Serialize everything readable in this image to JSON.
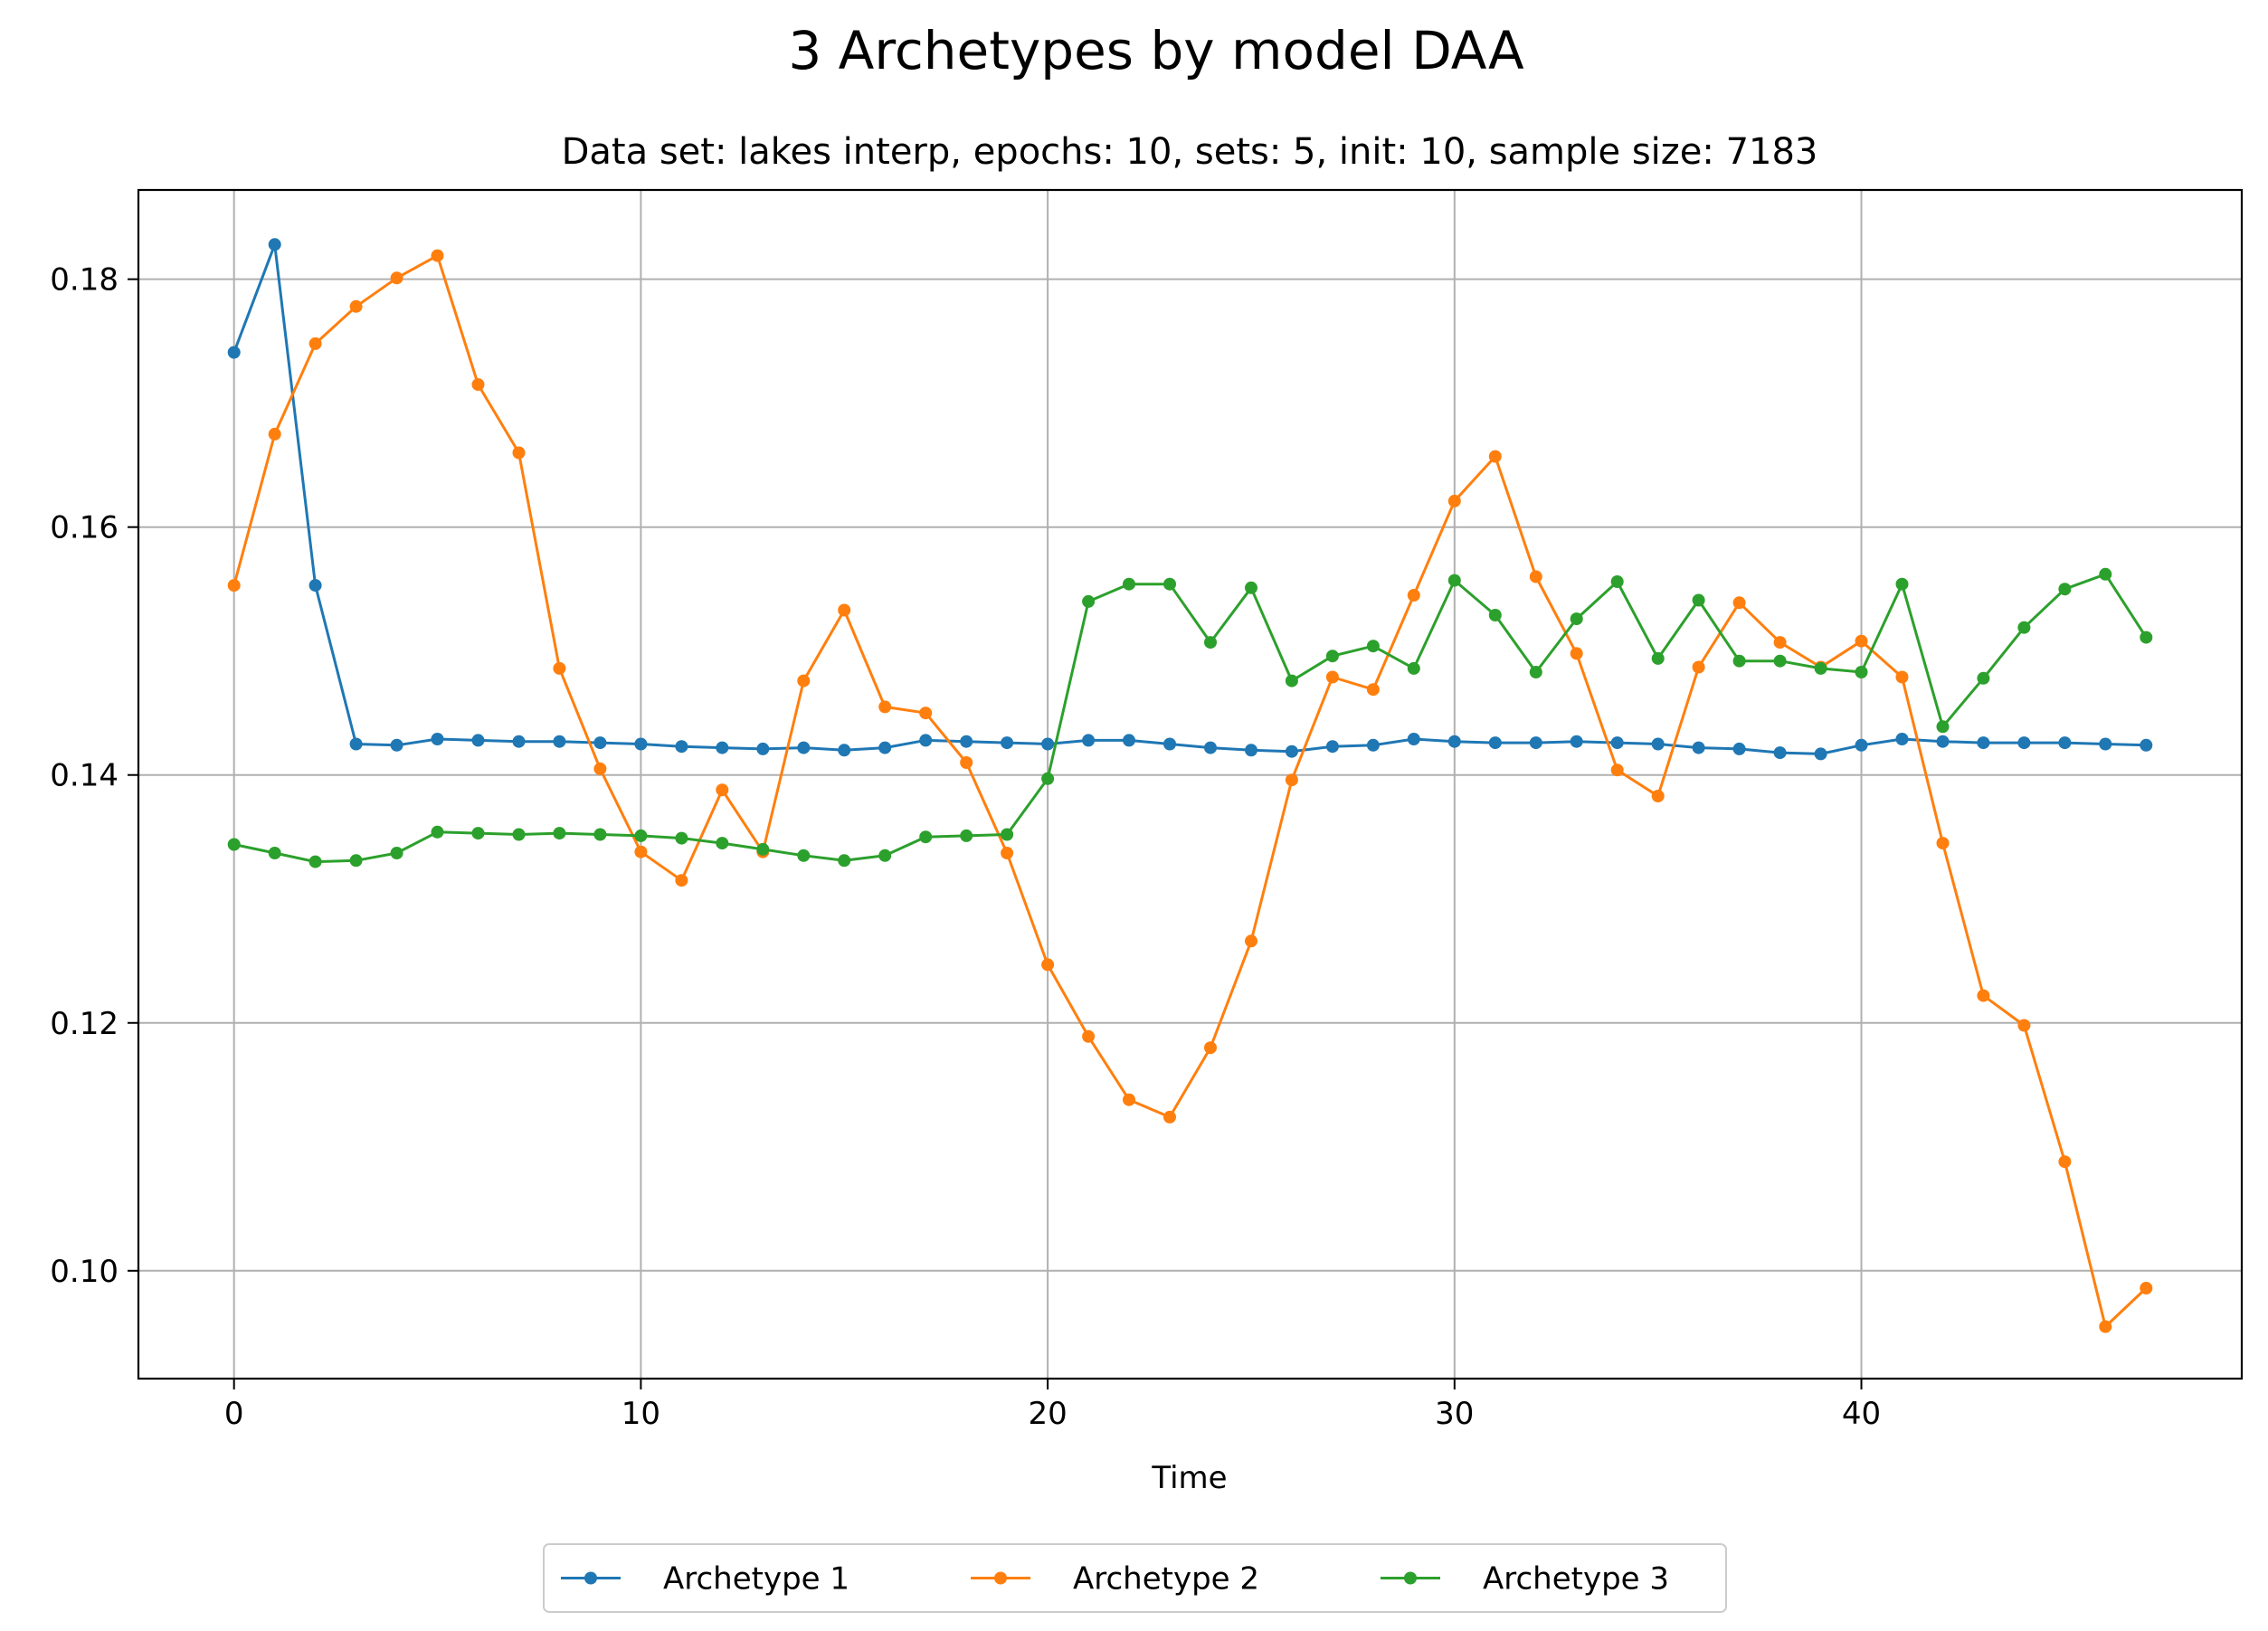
{
  "chart_data": {
    "type": "line",
    "title": "3 Archetypes by model DAA",
    "subtitle": "Data set: lakes interp, epochs: 10, sets: 5, init: 10, sample size: 7183",
    "xlabel": "Time",
    "ylabel": "",
    "xlim": [
      -2.35,
      49.35
    ],
    "ylim": [
      0.0913,
      0.1872
    ],
    "xticks": [
      0,
      10,
      20,
      30,
      40
    ],
    "yticks": [
      0.1,
      0.12,
      0.14,
      0.16,
      0.18
    ],
    "xtick_labels": [
      "0",
      "10",
      "20",
      "30",
      "40"
    ],
    "ytick_labels": [
      "0.10",
      "0.12",
      "0.14",
      "0.16",
      "0.18"
    ],
    "grid": true,
    "legend_position": "bottom-center",
    "x": [
      0,
      1,
      2,
      3,
      4,
      5,
      6,
      7,
      8,
      9,
      10,
      11,
      12,
      13,
      14,
      15,
      16,
      17,
      18,
      19,
      20,
      21,
      22,
      23,
      24,
      25,
      26,
      27,
      28,
      29,
      30,
      31,
      32,
      33,
      34,
      35,
      36,
      37,
      38,
      39,
      40,
      41,
      42,
      43,
      44,
      45,
      46,
      47
    ],
    "series": [
      {
        "name": "Archetype 1",
        "color": "#1f77b4",
        "values": [
          0.1741,
          0.1828,
          0.1553,
          0.1425,
          0.1424,
          0.1429,
          0.1428,
          0.1427,
          0.1427,
          0.1426,
          0.1425,
          0.1423,
          0.1422,
          0.1421,
          0.1422,
          0.142,
          0.1422,
          0.1428,
          0.1427,
          0.1426,
          0.1425,
          0.1428,
          0.1428,
          0.1425,
          0.1422,
          0.142,
          0.1419,
          0.1423,
          0.1424,
          0.1429,
          0.1427,
          0.1426,
          0.1426,
          0.1427,
          0.1426,
          0.1425,
          0.1422,
          0.1421,
          0.1418,
          0.1417,
          0.1424,
          0.1429,
          0.1427,
          0.1426,
          0.1426,
          0.1426,
          0.1425,
          0.1424
        ]
      },
      {
        "name": "Archetype 2",
        "color": "#ff7f0e",
        "values": [
          0.1553,
          0.1675,
          0.1748,
          0.1778,
          0.1801,
          0.1819,
          0.1715,
          0.166,
          0.1486,
          0.1405,
          0.1338,
          0.1315,
          0.1388,
          0.1338,
          0.1476,
          0.1533,
          0.1455,
          0.145,
          0.141,
          0.1337,
          0.1247,
          0.1189,
          0.1138,
          0.1124,
          0.118,
          0.1266,
          0.1396,
          0.1479,
          0.1469,
          0.1545,
          0.1621,
          0.1657,
          0.156,
          0.1498,
          0.1404,
          0.1383,
          0.1487,
          0.1539,
          0.1507,
          0.1487,
          0.1508,
          0.1479,
          0.1345,
          0.1222,
          0.1198,
          0.1088,
          0.0955,
          0.0986
        ]
      },
      {
        "name": "Archetype 3",
        "color": "#2ca02c",
        "values": [
          0.1344,
          0.1337,
          0.133,
          0.1331,
          0.1337,
          0.1354,
          0.1353,
          0.1352,
          0.1353,
          0.1352,
          0.1351,
          0.1349,
          0.1345,
          0.134,
          0.1335,
          0.1331,
          0.1335,
          0.135,
          0.1351,
          0.1352,
          0.1397,
          0.154,
          0.1554,
          0.1554,
          0.1507,
          0.1551,
          0.1476,
          0.1496,
          0.1504,
          0.1486,
          0.1557,
          0.1529,
          0.1483,
          0.1526,
          0.1556,
          0.1494,
          0.1541,
          0.1492,
          0.1492,
          0.1486,
          0.1483,
          0.1554,
          0.1439,
          0.1478,
          0.1519,
          0.155,
          0.1562,
          0.1511
        ]
      }
    ]
  }
}
